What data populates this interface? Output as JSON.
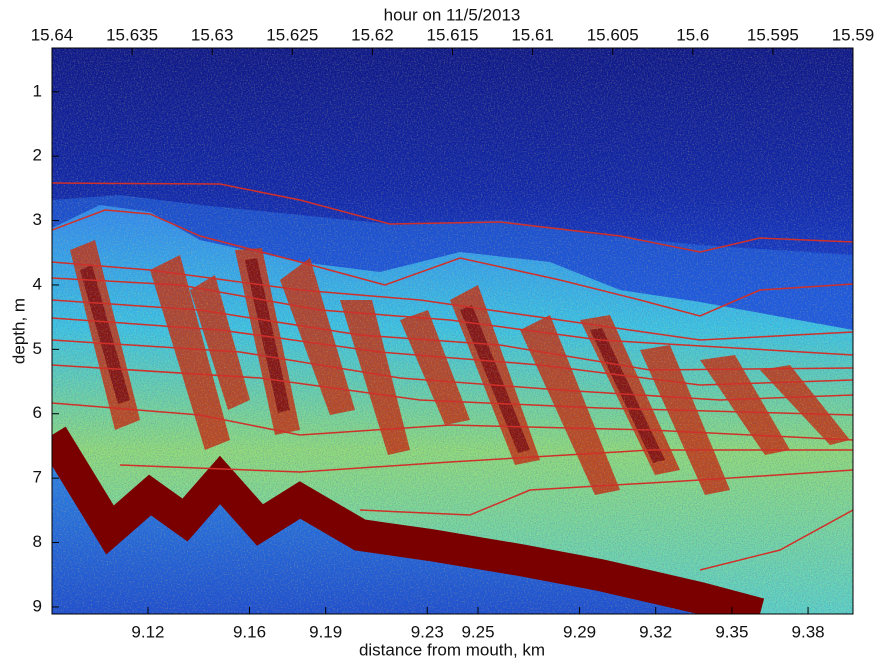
{
  "chart_data": {
    "type": "image",
    "x2_label": "hour on 11/5/2013",
    "xlabel": "distance from mouth, km",
    "ylabel": "depth, m",
    "x2lim": [
      15.64,
      15.59
    ],
    "x2ticks": [
      15.64,
      15.635,
      15.63,
      15.625,
      15.62,
      15.615,
      15.61,
      15.605,
      15.6,
      15.595,
      15.59
    ],
    "xlim": [
      9.0822,
      9.3977
    ],
    "xticks": [
      9.12,
      9.16,
      9.19,
      9.23,
      9.25,
      9.29,
      9.32,
      9.35,
      9.38
    ],
    "ylim": [
      0.32,
      9.11
    ],
    "yticks": [
      1,
      2,
      3,
      4,
      5,
      6,
      7,
      8,
      9
    ],
    "y_reversed": true
  }
}
